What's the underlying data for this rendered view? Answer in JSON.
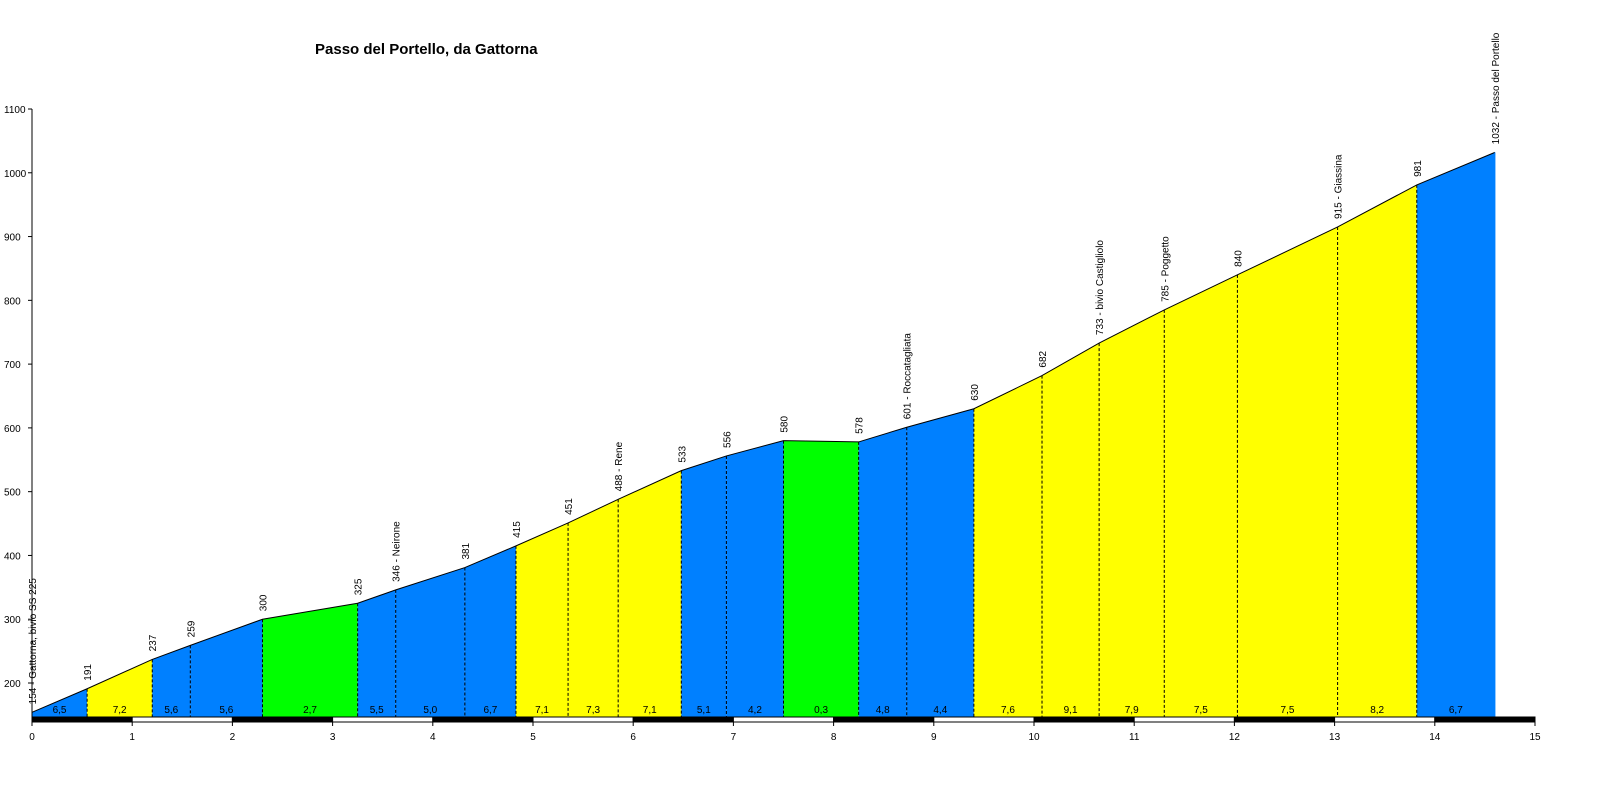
{
  "chart_data": {
    "type": "area",
    "title": "Passo del Portello, da Gattorna",
    "xlabel": "",
    "ylabel": "",
    "xlim": [
      0,
      15
    ],
    "ylim": [
      140,
      1100
    ],
    "x_ticks": [
      0,
      1,
      2,
      3,
      4,
      5,
      6,
      7,
      8,
      9,
      10,
      11,
      12,
      13,
      14,
      15
    ],
    "y_ticks": [
      200,
      300,
      400,
      500,
      600,
      700,
      800,
      900,
      1000,
      1100
    ],
    "colors": {
      "blue": "#0080ff",
      "yellow": "#ffff00",
      "green": "#00ff00"
    },
    "points": [
      {
        "x": 0.0,
        "y": 154,
        "label": "154 - Gattorna, bivio  SS 225"
      },
      {
        "x": 0.55,
        "y": 191,
        "label": "191"
      },
      {
        "x": 1.2,
        "y": 237,
        "label": "237"
      },
      {
        "x": 1.58,
        "y": 259,
        "label": "259"
      },
      {
        "x": 2.3,
        "y": 300,
        "label": "300"
      },
      {
        "x": 3.25,
        "y": 325,
        "label": "325"
      },
      {
        "x": 3.63,
        "y": 346,
        "label": "346 - Neirone"
      },
      {
        "x": 4.32,
        "y": 381,
        "label": "381"
      },
      {
        "x": 4.83,
        "y": 415,
        "label": "415"
      },
      {
        "x": 5.35,
        "y": 451,
        "label": "451"
      },
      {
        "x": 5.85,
        "y": 488,
        "label": "488 - Rene"
      },
      {
        "x": 6.48,
        "y": 533,
        "label": "533"
      },
      {
        "x": 6.93,
        "y": 556,
        "label": "556"
      },
      {
        "x": 7.5,
        "y": 580,
        "label": "580"
      },
      {
        "x": 8.25,
        "y": 578,
        "label": "578"
      },
      {
        "x": 8.73,
        "y": 601,
        "label": "601 - Roccatagliata"
      },
      {
        "x": 9.4,
        "y": 630,
        "label": "630"
      },
      {
        "x": 10.08,
        "y": 682,
        "label": "682"
      },
      {
        "x": 10.65,
        "y": 733,
        "label": "733 - bivio Castigliolo"
      },
      {
        "x": 11.3,
        "y": 785,
        "label": "785 - Poggetto"
      },
      {
        "x": 12.03,
        "y": 840,
        "label": "840"
      },
      {
        "x": 13.03,
        "y": 915,
        "label": "915 - Giassina"
      },
      {
        "x": 13.82,
        "y": 981,
        "label": "981"
      },
      {
        "x": 14.6,
        "y": 1032,
        "label": "1032 - Passo del Portello"
      }
    ],
    "segments": [
      {
        "gradient": "6,5",
        "color": "blue"
      },
      {
        "gradient": "7,2",
        "color": "yellow"
      },
      {
        "gradient": "5,6",
        "color": "blue"
      },
      {
        "gradient": "5,6",
        "color": "blue"
      },
      {
        "gradient": "2,7",
        "color": "green"
      },
      {
        "gradient": "5,5",
        "color": "blue"
      },
      {
        "gradient": "5,0",
        "color": "blue"
      },
      {
        "gradient": "6,7",
        "color": "blue"
      },
      {
        "gradient": "7,1",
        "color": "yellow"
      },
      {
        "gradient": "7,3",
        "color": "yellow"
      },
      {
        "gradient": "7,1",
        "color": "yellow"
      },
      {
        "gradient": "5,1",
        "color": "blue"
      },
      {
        "gradient": "4,2",
        "color": "blue"
      },
      {
        "gradient": "0,3",
        "color": "green"
      },
      {
        "gradient": "4,8",
        "color": "blue"
      },
      {
        "gradient": "4,4",
        "color": "blue"
      },
      {
        "gradient": "7,6",
        "color": "yellow"
      },
      {
        "gradient": "9,1",
        "color": "yellow"
      },
      {
        "gradient": "7,9",
        "color": "yellow"
      },
      {
        "gradient": "7,5",
        "color": "yellow"
      },
      {
        "gradient": "7,5",
        "color": "yellow"
      },
      {
        "gradient": "8,2",
        "color": "yellow"
      },
      {
        "gradient": "6,7",
        "color": "blue"
      }
    ]
  }
}
